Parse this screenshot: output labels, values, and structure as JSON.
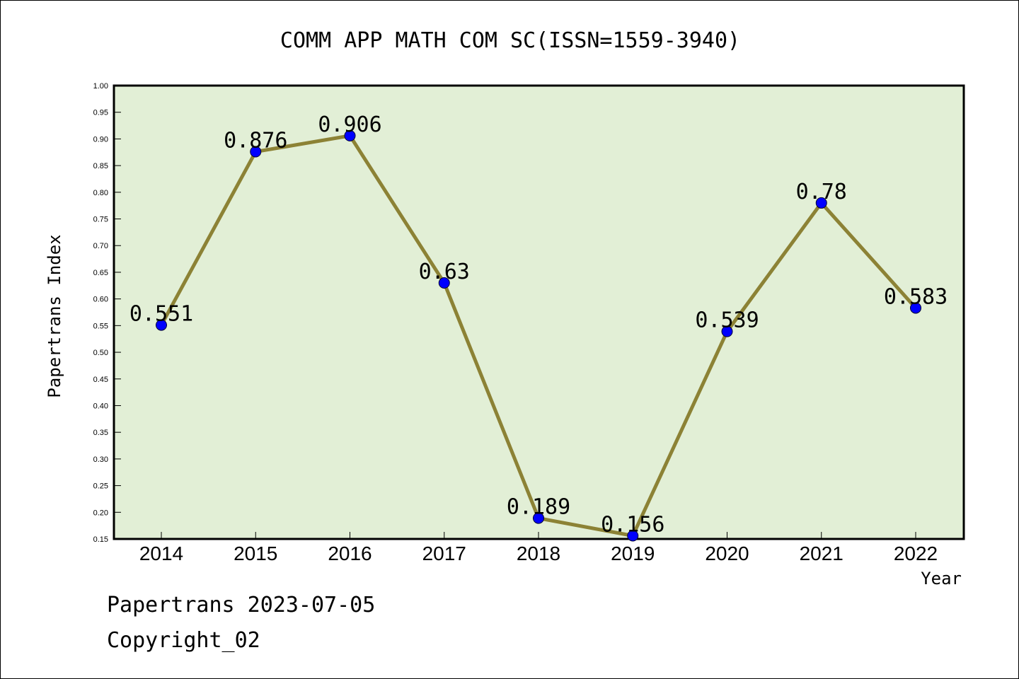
{
  "colors": {
    "plot_background": "#e2efd6",
    "line": "#8c8235",
    "marker": "#0000ff"
  },
  "chart_data": {
    "type": "line",
    "title": "COMM APP MATH COM SC(ISSN=1559-3940)",
    "xlabel": "Year",
    "ylabel": "Papertrans Index",
    "categories": [
      "2014",
      "2015",
      "2016",
      "2017",
      "2018",
      "2019",
      "2020",
      "2021",
      "2022"
    ],
    "values": [
      0.551,
      0.876,
      0.906,
      0.63,
      0.189,
      0.156,
      0.539,
      0.78,
      0.583
    ],
    "data_labels": [
      "0.551",
      "0.876",
      "0.906",
      "0.63",
      "0.189",
      "0.156",
      "0.539",
      "0.78",
      "0.583"
    ],
    "ylim": [
      0.15,
      1.0
    ],
    "yticks": [
      "0.15",
      "0.20",
      "0.25",
      "0.30",
      "0.35",
      "0.40",
      "0.45",
      "0.50",
      "0.55",
      "0.60",
      "0.65",
      "0.70",
      "0.75",
      "0.80",
      "0.85",
      "0.90",
      "0.95",
      "1.00"
    ],
    "grid": false,
    "legend": "none"
  },
  "footer": {
    "line1": "Papertrans 2023-07-05",
    "line2": "Copyright_02"
  }
}
